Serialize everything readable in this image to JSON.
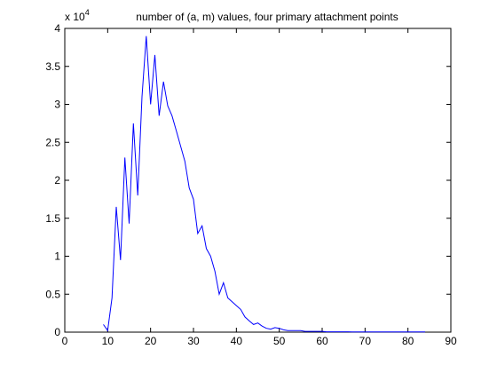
{
  "chart_data": {
    "type": "line",
    "title": "number of (a, m) values, four primary attachment points",
    "xlabel": "",
    "ylabel": "",
    "y_scale_multiplier": {
      "base": "x 10",
      "exponent": "4"
    },
    "xlim": [
      0,
      90
    ],
    "ylim": [
      0,
      4
    ],
    "x_ticks": [
      0,
      10,
      20,
      30,
      40,
      50,
      60,
      70,
      80,
      90
    ],
    "y_ticks": [
      0,
      0.5,
      1,
      1.5,
      2,
      2.5,
      3,
      3.5,
      4
    ],
    "x_tick_labels": [
      "0",
      "10",
      "20",
      "30",
      "40",
      "50",
      "60",
      "70",
      "80",
      "90"
    ],
    "y_tick_labels": [
      "0",
      "0.5",
      "1",
      "1.5",
      "2",
      "2.5",
      "3",
      "3.5",
      "4"
    ],
    "grid": false,
    "series_color": "#0000ff",
    "series": [
      {
        "x": [
          9,
          10,
          11,
          12,
          13,
          14,
          15,
          16,
          17,
          18,
          19,
          20,
          21,
          22,
          23,
          24,
          25,
          26,
          27,
          28,
          29,
          30,
          31,
          32,
          33,
          34,
          35,
          36,
          37,
          38,
          39,
          40,
          41,
          42,
          43,
          44,
          45,
          46,
          47,
          48,
          49,
          50,
          51,
          52,
          53,
          54,
          55,
          56,
          57,
          58,
          59,
          60,
          61,
          62,
          63,
          64,
          65,
          66,
          67,
          68,
          69,
          70,
          71,
          72,
          73,
          74,
          75,
          76,
          77,
          78,
          79,
          80,
          81,
          82,
          83,
          84
        ],
        "y": [
          0.1,
          0.02,
          0.45,
          1.65,
          0.95,
          2.3,
          1.43,
          2.75,
          1.8,
          3.1,
          3.9,
          3.0,
          3.65,
          2.85,
          3.3,
          2.98,
          2.85,
          2.65,
          2.45,
          2.25,
          1.9,
          1.75,
          1.3,
          1.4,
          1.1,
          1.0,
          0.8,
          0.5,
          0.65,
          0.45,
          0.4,
          0.35,
          0.3,
          0.2,
          0.15,
          0.1,
          0.12,
          0.08,
          0.05,
          0.04,
          0.06,
          0.05,
          0.03,
          0.02,
          0.02,
          0.02,
          0.02,
          0.01,
          0.01,
          0.01,
          0.01,
          0.01,
          0.005,
          0.005,
          0.005,
          0.005,
          0.005,
          0.005,
          0.003,
          0.003,
          0.003,
          0.002,
          0.002,
          0.002,
          0.002,
          0.002,
          0.002,
          0.002,
          0.002,
          0.002,
          0.002,
          0.002,
          0.002,
          0.002,
          0.002,
          0.002
        ]
      }
    ]
  }
}
